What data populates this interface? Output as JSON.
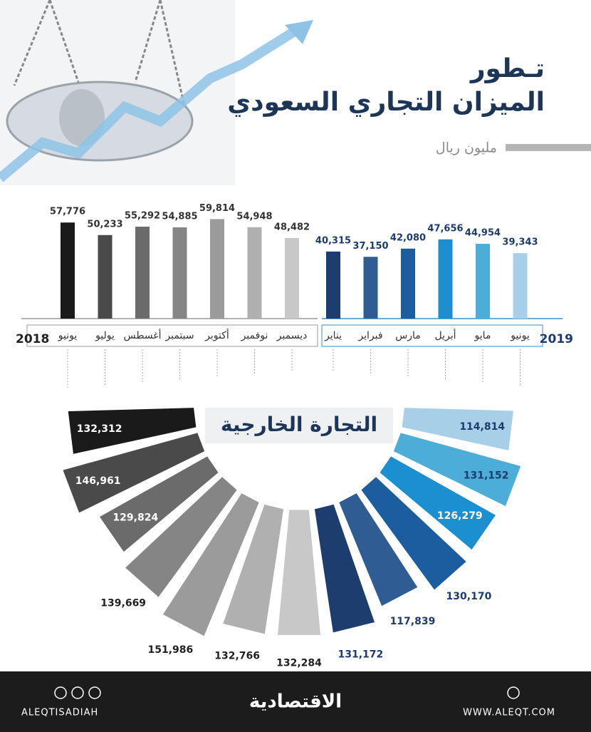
{
  "header": {
    "title_line1": "تـطور",
    "title_line2": "الميزان التجاري السعودي",
    "unit": "مليون ريال"
  },
  "chart_data": [
    {
      "type": "bar",
      "ylim": [
        0,
        60000
      ],
      "series": [
        {
          "name": "2018",
          "categories": [
            "يونيو",
            "يوليو",
            "أغسطس",
            "سبتمبر",
            "أكتوبر",
            "نوفمبر",
            "ديسمبر"
          ],
          "values": [
            57776,
            50233,
            55292,
            54885,
            59814,
            54948,
            48482
          ],
          "value_labels": [
            "57,776",
            "50,233",
            "55,292",
            "54,885",
            "59,814",
            "54,948",
            "48,482"
          ],
          "colors": [
            "#1a1a1a",
            "#4a4a4a",
            "#6b6b6b",
            "#858585",
            "#9b9b9b",
            "#b0b0b0",
            "#c8c8c8"
          ]
        },
        {
          "name": "2019",
          "categories": [
            "يناير",
            "فبراير",
            "مارس",
            "أبريل",
            "مايو",
            "يونيو"
          ],
          "values": [
            40315,
            37150,
            42080,
            47656,
            44954,
            39343
          ],
          "value_labels": [
            "40,315",
            "37,150",
            "42,080",
            "47,656",
            "44,954",
            "39,343"
          ],
          "colors": [
            "#1c3d6e",
            "#2f5d93",
            "#1b5d9e",
            "#1c8fd0",
            "#4cadd9",
            "#a8cfe8"
          ]
        }
      ]
    },
    {
      "type": "radial-bar",
      "title": "التجارة الخارجية",
      "rlim": [
        0,
        150000
      ],
      "values": [
        132312,
        146961,
        129824,
        139669,
        151986,
        132766,
        132284,
        131172,
        117839,
        130170,
        126279,
        131152,
        114814
      ],
      "value_labels": [
        "132,312",
        "146,961",
        "129,824",
        "139,669",
        "151,986",
        "132,766",
        "132,284",
        "131,172",
        "117,839",
        "130,170",
        "126,279",
        "131,152",
        "114,814"
      ],
      "colors": [
        "#1a1a1a",
        "#4a4a4a",
        "#6b6b6b",
        "#858585",
        "#9b9b9b",
        "#b0b0b0",
        "#c8c8c8",
        "#1c3d6e",
        "#2f5d93",
        "#1b5d9e",
        "#1c8fd0",
        "#4cadd9",
        "#a8cfe8"
      ]
    }
  ],
  "footer": {
    "handle": "ALEQTISADIAH",
    "brand": "الاقتصادية",
    "website": "WWW.ALEQT.COM"
  }
}
